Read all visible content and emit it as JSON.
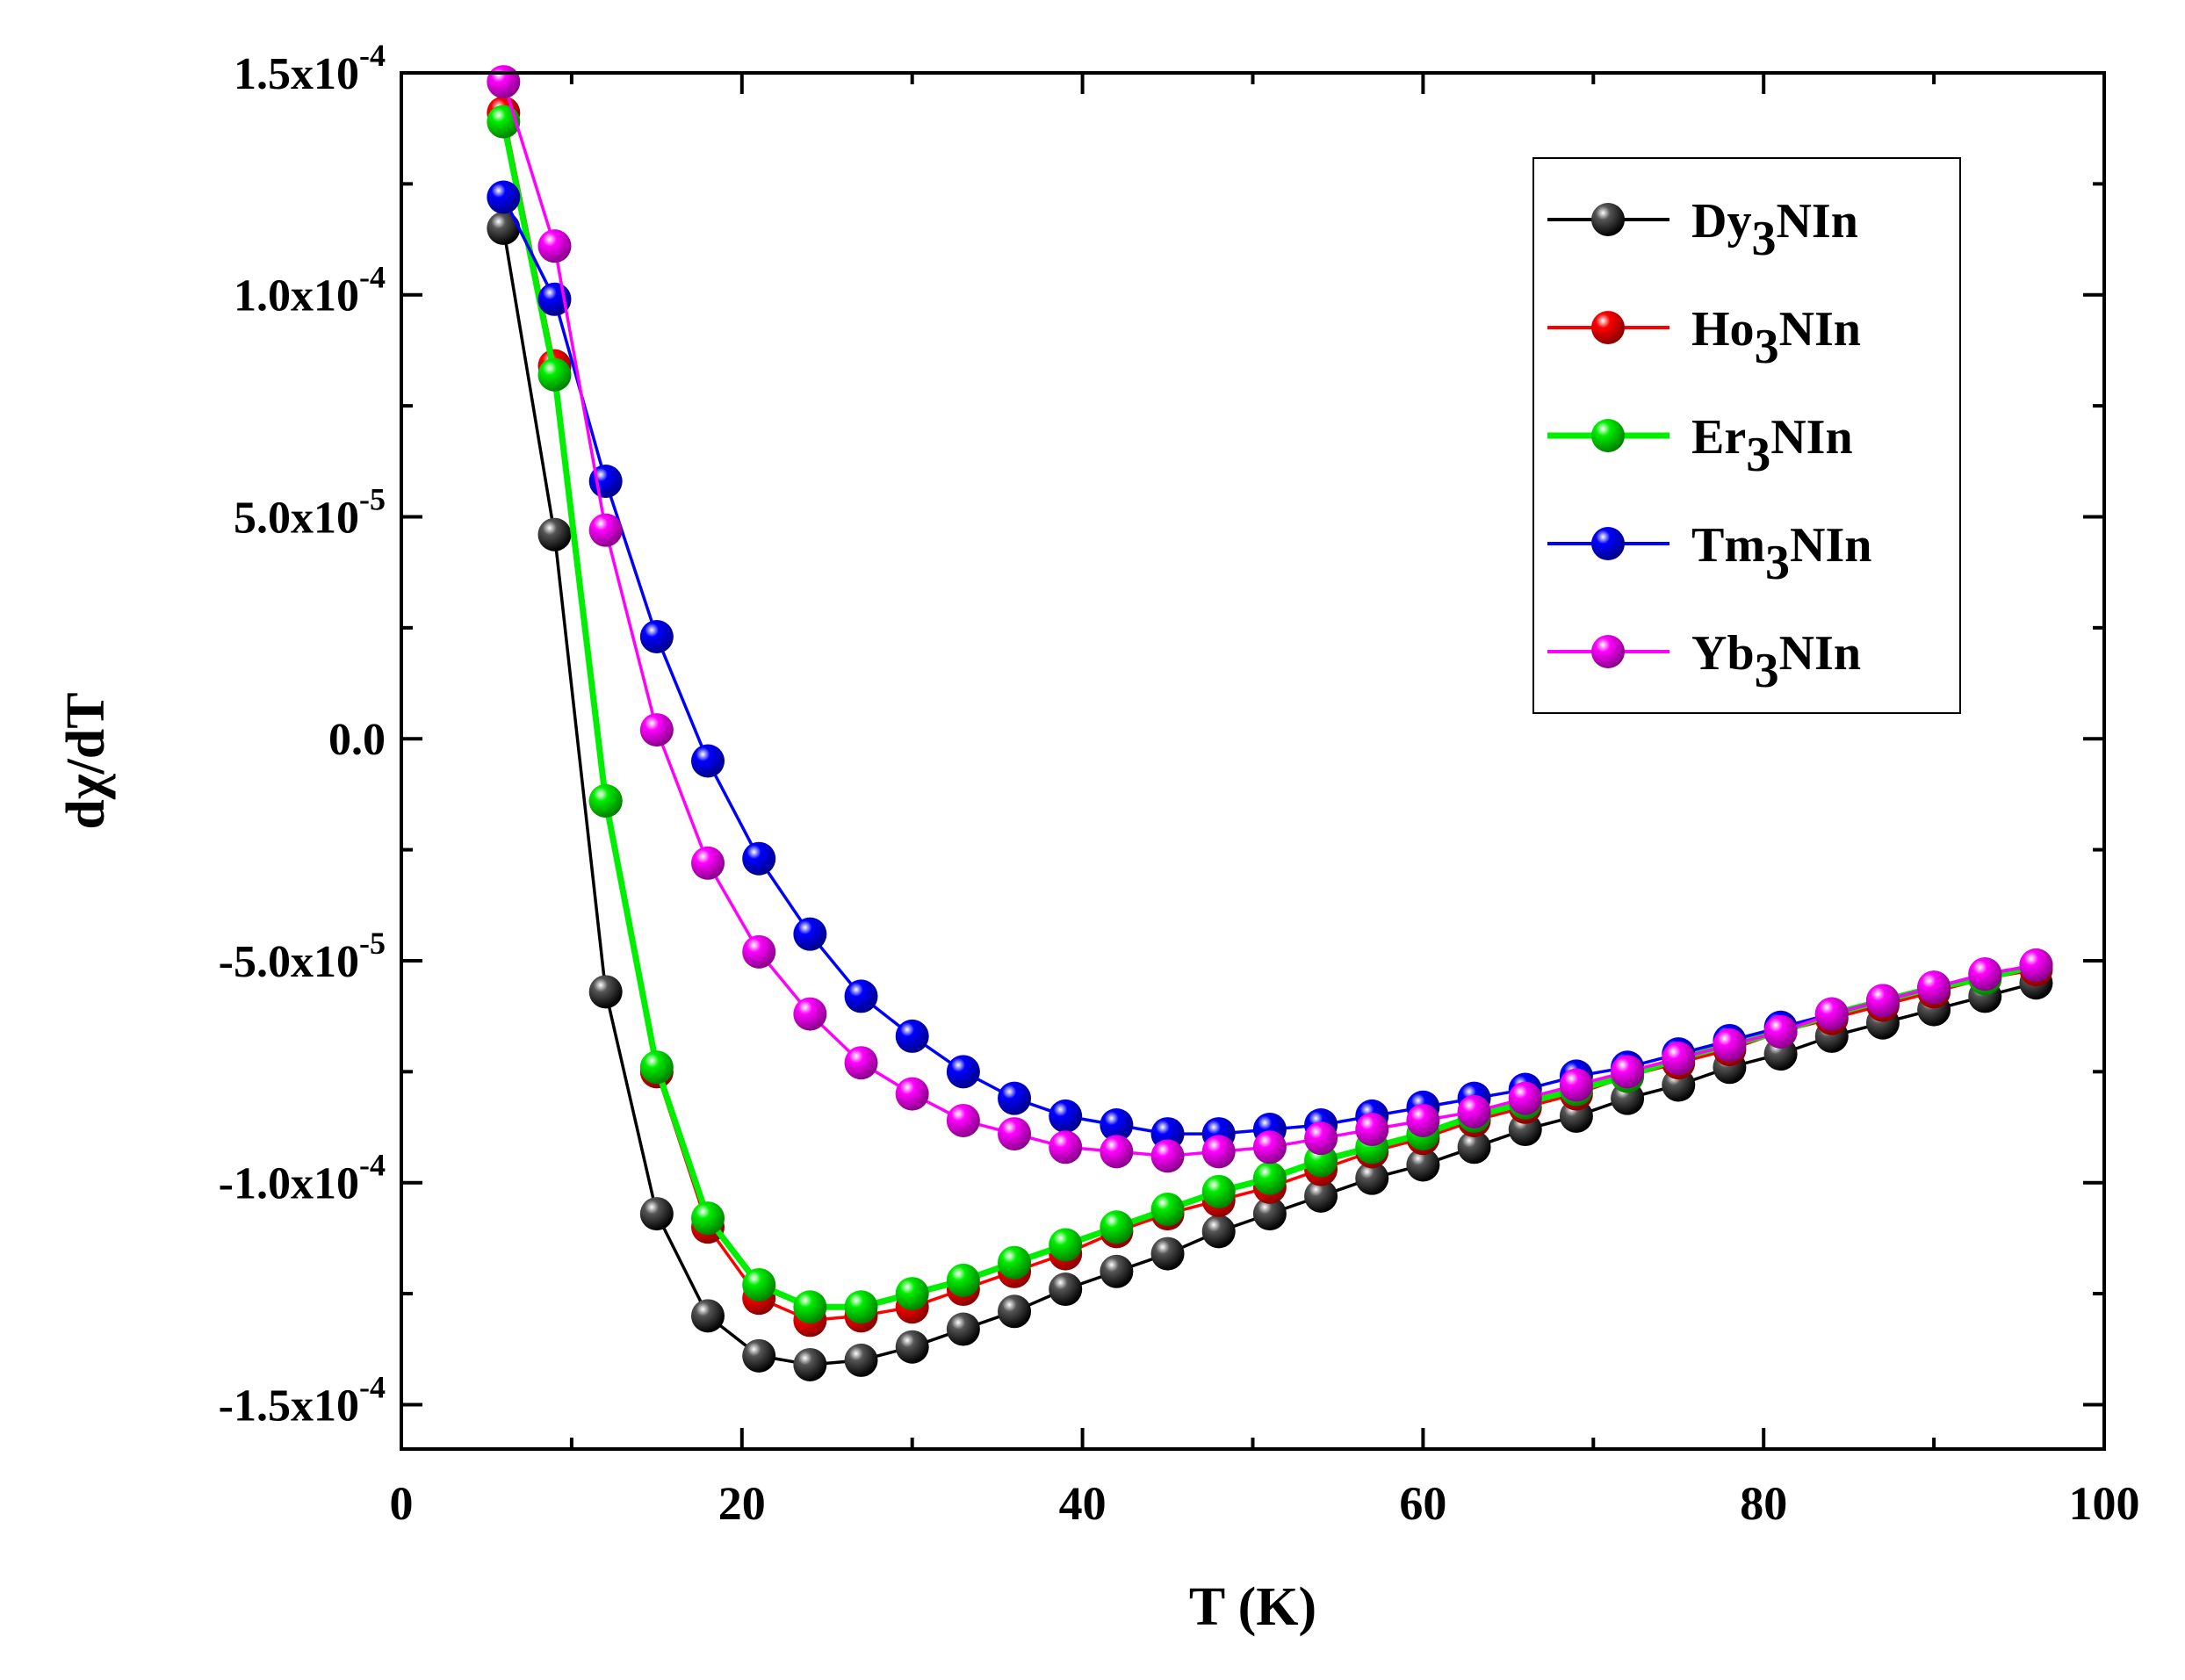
{
  "chart_data": {
    "type": "line",
    "title": "",
    "xlabel": "T (K)",
    "ylabel_main": "d",
    "ylabel_chi": "χ",
    "ylabel_tail": "/dT",
    "xlim": [
      0,
      100
    ],
    "ylim": [
      -0.00016,
      0.00015
    ],
    "x_ticks": [
      0,
      20,
      40,
      60,
      80,
      100
    ],
    "x_tick_labels": [
      "0",
      "20",
      "40",
      "60",
      "80",
      "100"
    ],
    "y_ticks": [
      0.00015,
      0.0001,
      5e-05,
      0,
      -5e-05,
      -0.0001,
      -0.00015
    ],
    "y_tick_labels": [
      {
        "mant": "1.5x10",
        "exp": "-4"
      },
      {
        "mant": "1.0x10",
        "exp": "-4"
      },
      {
        "mant": "5.0x10",
        "exp": "-5"
      },
      {
        "mant": "0.0",
        "exp": ""
      },
      {
        "mant": "-5.0x10",
        "exp": "-5"
      },
      {
        "mant": "-1.0x10",
        "exp": "-4"
      },
      {
        "mant": "-1.5x10",
        "exp": "-4"
      }
    ],
    "legend_position": "top-right",
    "x": [
      6,
      9,
      12,
      15,
      18,
      21,
      24,
      27,
      30,
      33,
      36,
      39,
      42,
      45,
      48,
      51,
      54,
      57,
      60,
      63,
      66,
      69,
      72,
      75,
      78,
      81,
      84,
      87,
      90,
      93,
      96
    ],
    "series": [
      {
        "name": "Dy",
        "sub": "3",
        "suffix": "NIn",
        "color": "#000000",
        "bold": false,
        "values": [
          0.000115,
          4.6e-05,
          -5.7e-05,
          -0.000107,
          -0.00013,
          -0.000139,
          -0.000141,
          -0.00014,
          -0.000137,
          -0.000133,
          -0.000129,
          -0.000124,
          -0.00012,
          -0.000116,
          -0.000111,
          -0.000107,
          -0.000103,
          -9.9e-05,
          -9.6e-05,
          -9.2e-05,
          -8.8e-05,
          -8.5e-05,
          -8.1e-05,
          -7.8e-05,
          -7.4e-05,
          -7.1e-05,
          -6.7e-05,
          -6.4e-05,
          -6.1e-05,
          -5.8e-05,
          -5.5e-05
        ]
      },
      {
        "name": "Ho",
        "sub": "3",
        "suffix": "NIn",
        "color": "#ff0000",
        "bold": false,
        "values": [
          0.000141,
          8.4e-05,
          -1.4e-05,
          -7.5e-05,
          -0.00011,
          -0.000126,
          -0.000131,
          -0.00013,
          -0.000128,
          -0.000124,
          -0.00012,
          -0.000116,
          -0.000111,
          -0.000107,
          -0.000104,
          -0.000101,
          -9.7e-05,
          -9.3e-05,
          -9e-05,
          -8.6e-05,
          -8.3e-05,
          -8e-05,
          -7.6e-05,
          -7.3e-05,
          -7e-05,
          -6.6e-05,
          -6.3e-05,
          -6e-05,
          -5.7e-05,
          -5.4e-05,
          -5.2e-05
        ]
      },
      {
        "name": "Er",
        "sub": "3",
        "suffix": "NIn",
        "color": "#00ee00",
        "bold": true,
        "values": [
          0.000139,
          8.2e-05,
          -1.4e-05,
          -7.4e-05,
          -0.000108,
          -0.000123,
          -0.000128,
          -0.000128,
          -0.000125,
          -0.000122,
          -0.000118,
          -0.000114,
          -0.00011,
          -0.000106,
          -0.000102,
          -9.9e-05,
          -9.5e-05,
          -9.2e-05,
          -8.9e-05,
          -8.5e-05,
          -8.2e-05,
          -7.9e-05,
          -7.6e-05,
          -7.2e-05,
          -6.9e-05,
          -6.6e-05,
          -6.2e-05,
          -5.9e-05,
          -5.6e-05,
          -5.4e-05,
          -5.1e-05
        ]
      },
      {
        "name": "Tm",
        "sub": "3",
        "suffix": "NIn",
        "color": "#0000ff",
        "bold": false,
        "values": [
          0.000122,
          9.9e-05,
          5.8e-05,
          2.3e-05,
          -5e-06,
          -2.7e-05,
          -4.4e-05,
          -5.8e-05,
          -6.7e-05,
          -7.5e-05,
          -8.1e-05,
          -8.5e-05,
          -8.7e-05,
          -8.9e-05,
          -8.9e-05,
          -8.8e-05,
          -8.7e-05,
          -8.5e-05,
          -8.3e-05,
          -8.1e-05,
          -7.9e-05,
          -7.6e-05,
          -7.4e-05,
          -7.1e-05,
          -6.8e-05,
          -6.5e-05,
          -6.2e-05,
          -5.9e-05,
          -5.6e-05,
          -5.3e-05,
          -5.1e-05
        ]
      },
      {
        "name": "Yb",
        "sub": "3",
        "suffix": "NIn",
        "color": "#ff00ff",
        "bold": false,
        "values": [
          0.000148,
          0.000111,
          4.7e-05,
          2e-06,
          -2.8e-05,
          -4.8e-05,
          -6.2e-05,
          -7.3e-05,
          -8e-05,
          -8.6e-05,
          -8.9e-05,
          -9.2e-05,
          -9.3e-05,
          -9.4e-05,
          -9.3e-05,
          -9.2e-05,
          -9e-05,
          -8.8e-05,
          -8.6e-05,
          -8.4e-05,
          -8.1e-05,
          -7.8e-05,
          -7.5e-05,
          -7.2e-05,
          -6.9e-05,
          -6.6e-05,
          -6.2e-05,
          -5.9e-05,
          -5.6e-05,
          -5.3e-05,
          -5.1e-05
        ]
      }
    ]
  }
}
